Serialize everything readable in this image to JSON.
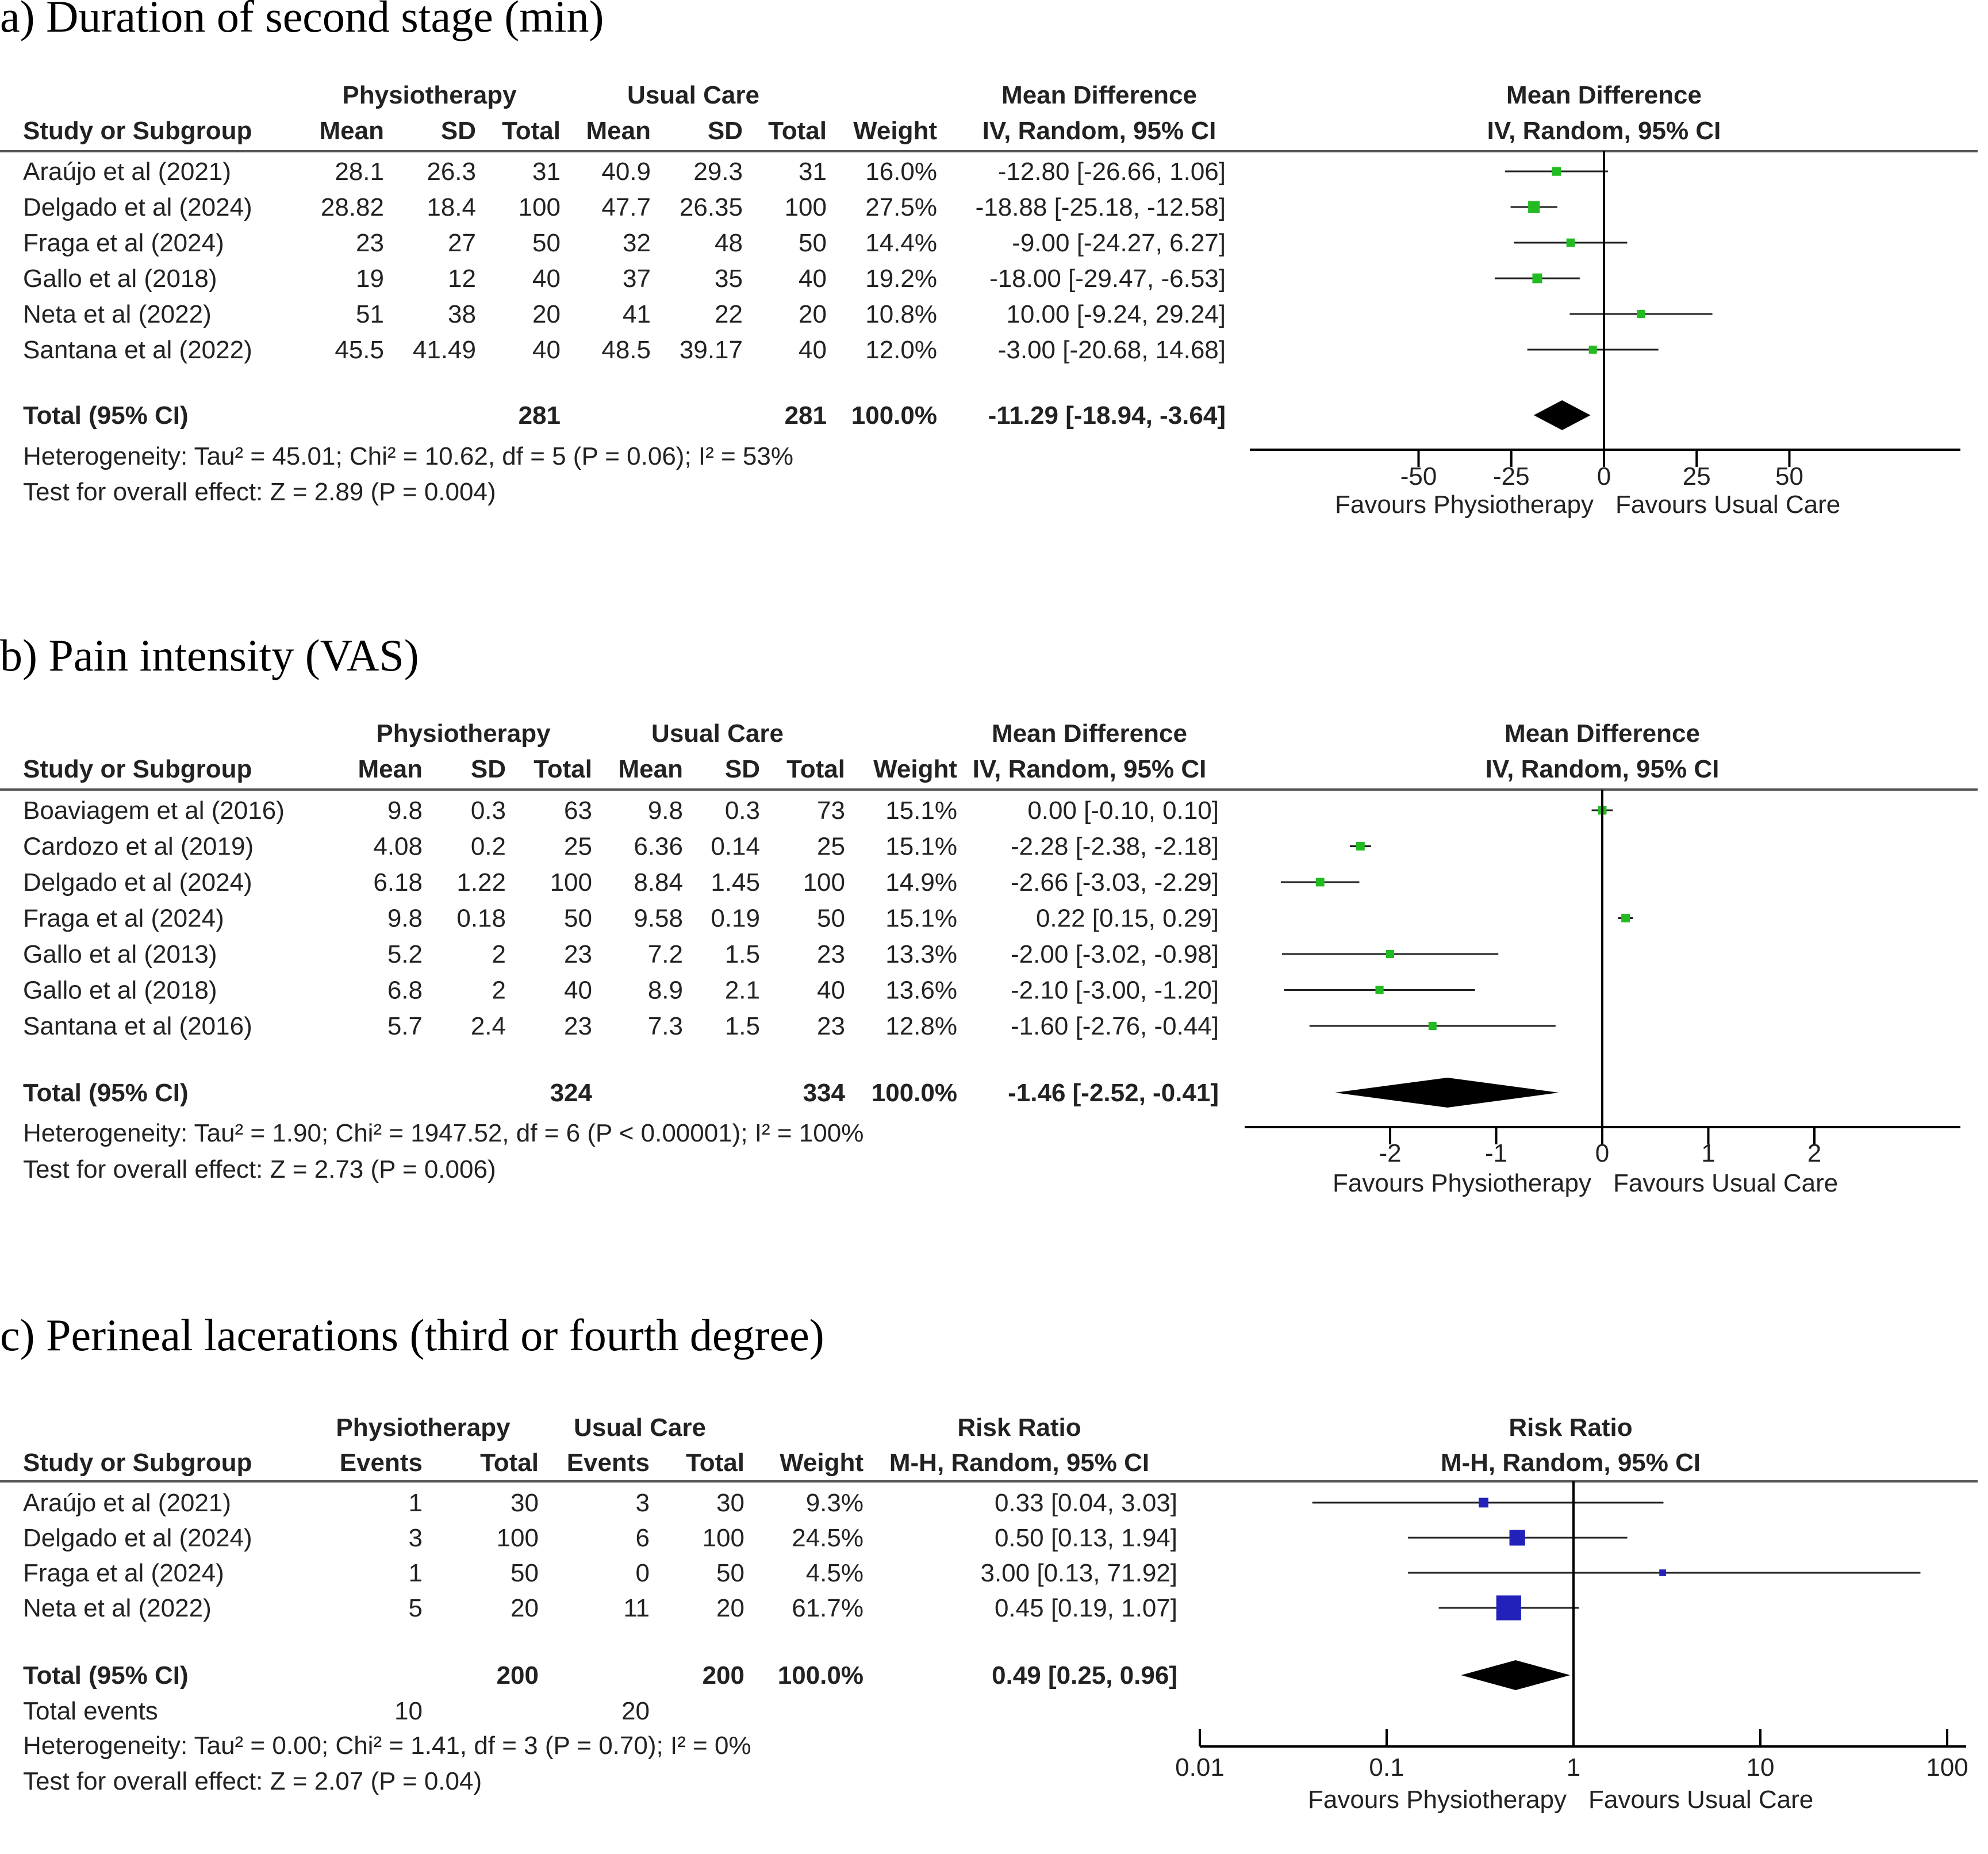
{
  "chart_data": [
    {
      "type": "forest",
      "title": "a) Duration of second stage (min)",
      "effect_header": [
        "Mean Difference",
        "IV, Random, 95% CI"
      ],
      "plot_header": [
        "Mean Difference",
        "IV, Random, 95% CI"
      ],
      "group_headers": [
        "Physiotherapy",
        "Usual Care"
      ],
      "columns": [
        "Study or Subgroup",
        "Mean",
        "SD",
        "Total",
        "Mean",
        "SD",
        "Total",
        "Weight",
        "IV, Random, 95% CI"
      ],
      "studies": [
        {
          "name": "Araújo et al (2021)",
          "cells": [
            "28.1",
            "26.3",
            "31",
            "40.9",
            "29.3",
            "31",
            "16.0%",
            "-12.80 [-26.66, 1.06]"
          ],
          "est": -12.8,
          "lo": -26.66,
          "hi": 1.06
        },
        {
          "name": "Delgado et al (2024)",
          "cells": [
            "28.82",
            "18.4",
            "100",
            "47.7",
            "26.35",
            "100",
            "27.5%",
            "-18.88 [-25.18, -12.58]"
          ],
          "est": -18.88,
          "lo": -25.18,
          "hi": -12.58
        },
        {
          "name": "Fraga et al (2024)",
          "cells": [
            "23",
            "27",
            "50",
            "32",
            "48",
            "50",
            "14.4%",
            "-9.00 [-24.27, 6.27]"
          ],
          "est": -9.0,
          "lo": -24.27,
          "hi": 6.27
        },
        {
          "name": "Gallo et al (2018)",
          "cells": [
            "19",
            "12",
            "40",
            "37",
            "35",
            "40",
            "19.2%",
            "-18.00 [-29.47, -6.53]"
          ],
          "est": -18.0,
          "lo": -29.47,
          "hi": -6.53
        },
        {
          "name": "Neta et al (2022)",
          "cells": [
            "51",
            "38",
            "20",
            "41",
            "22",
            "20",
            "10.8%",
            "10.00 [-9.24, 29.24]"
          ],
          "est": 10.0,
          "lo": -9.24,
          "hi": 29.24
        },
        {
          "name": "Santana et al (2022)",
          "cells": [
            "45.5",
            "41.49",
            "40",
            "48.5",
            "39.17",
            "40",
            "12.0%",
            "-3.00 [-20.68, 14.68]"
          ],
          "est": -3.0,
          "lo": -20.68,
          "hi": 14.68
        }
      ],
      "total": {
        "label": "Total (95% CI)",
        "cells": [
          "",
          "",
          "281",
          "",
          "",
          "281",
          "100.0%",
          "-11.29 [-18.94, -3.64]"
        ],
        "est": -11.29,
        "lo": -18.94,
        "hi": -3.64
      },
      "footer": [
        "Heterogeneity: Tau² = 45.01; Chi² = 10.62, df = 5 (P = 0.06); I² = 53%",
        "Test for overall effect: Z = 2.89 (P = 0.004)"
      ],
      "scale": "linear",
      "xlim": [
        -50,
        50
      ],
      "ticks": [
        -50,
        -25,
        0,
        25,
        50
      ],
      "tick_labels": [
        "-50",
        "-25",
        "0",
        "25",
        "50"
      ],
      "favours": [
        "Favours Physiotherapy",
        "Favours Usual Care"
      ],
      "marker_color": "#22bb22"
    },
    {
      "type": "forest",
      "title": "b) Pain intensity (VAS)",
      "effect_header": [
        "Mean Difference",
        "IV, Random, 95% CI"
      ],
      "plot_header": [
        "Mean Difference",
        "IV, Random, 95% CI"
      ],
      "group_headers": [
        "Physiotherapy",
        "Usual Care"
      ],
      "columns": [
        "Study or Subgroup",
        "Mean",
        "SD",
        "Total",
        "Mean",
        "SD",
        "Total",
        "Weight",
        "IV, Random, 95% CI"
      ],
      "studies": [
        {
          "name": "Boaviagem et al (2016)",
          "cells": [
            "9.8",
            "0.3",
            "63",
            "9.8",
            "0.3",
            "73",
            "15.1%",
            "0.00 [-0.10, 0.10]"
          ],
          "est": 0.0,
          "lo": -0.1,
          "hi": 0.1
        },
        {
          "name": "Cardozo et al (2019)",
          "cells": [
            "4.08",
            "0.2",
            "25",
            "6.36",
            "0.14",
            "25",
            "15.1%",
            "-2.28 [-2.38, -2.18]"
          ],
          "est": -2.28,
          "lo": -2.38,
          "hi": -2.18
        },
        {
          "name": "Delgado et al (2024)",
          "cells": [
            "6.18",
            "1.22",
            "100",
            "8.84",
            "1.45",
            "100",
            "14.9%",
            "-2.66 [-3.03, -2.29]"
          ],
          "est": -2.66,
          "lo": -3.03,
          "hi": -2.29
        },
        {
          "name": "Fraga et al (2024)",
          "cells": [
            "9.8",
            "0.18",
            "50",
            "9.58",
            "0.19",
            "50",
            "15.1%",
            "0.22 [0.15, 0.29]"
          ],
          "est": 0.22,
          "lo": 0.15,
          "hi": 0.29
        },
        {
          "name": "Gallo et al (2013)",
          "cells": [
            "5.2",
            "2",
            "23",
            "7.2",
            "1.5",
            "23",
            "13.3%",
            "-2.00 [-3.02, -0.98]"
          ],
          "est": -2.0,
          "lo": -3.02,
          "hi": -0.98
        },
        {
          "name": "Gallo et al (2018)",
          "cells": [
            "6.8",
            "2",
            "40",
            "8.9",
            "2.1",
            "40",
            "13.6%",
            "-2.10 [-3.00, -1.20]"
          ],
          "est": -2.1,
          "lo": -3.0,
          "hi": -1.2
        },
        {
          "name": "Santana et al (2016)",
          "cells": [
            "5.7",
            "2.4",
            "23",
            "7.3",
            "1.5",
            "23",
            "12.8%",
            "-1.60 [-2.76, -0.44]"
          ],
          "est": -1.6,
          "lo": -2.76,
          "hi": -0.44
        }
      ],
      "total": {
        "label": "Total (95% CI)",
        "cells": [
          "",
          "",
          "324",
          "",
          "",
          "334",
          "100.0%",
          "-1.46 [-2.52, -0.41]"
        ],
        "est": -1.46,
        "lo": -2.52,
        "hi": -0.41
      },
      "footer": [
        "Heterogeneity: Tau² = 1.90; Chi² = 1947.52, df = 6 (P < 0.00001); I² = 100%",
        "Test for overall effect: Z = 2.73 (P = 0.006)"
      ],
      "scale": "linear",
      "xlim": [
        -3.4,
        3.4
      ],
      "ticks": [
        -2,
        -1,
        0,
        1,
        2
      ],
      "tick_labels": [
        "-2",
        "-1",
        "0",
        "1",
        "2"
      ],
      "favours": [
        "Favours Physiotherapy",
        "Favours Usual Care"
      ],
      "marker_color": "#22bb22"
    },
    {
      "type": "forest",
      "title": "c) Perineal lacerations (third or fourth degree)",
      "effect_header": [
        "Risk Ratio",
        "M-H, Random, 95% CI"
      ],
      "plot_header": [
        "Risk Ratio",
        "M-H, Random, 95% CI"
      ],
      "group_headers": [
        "Physiotherapy",
        "Usual Care"
      ],
      "columns": [
        "Study or Subgroup",
        "Events",
        "Total",
        "Events",
        "Total",
        "Weight",
        "M-H, Random, 95% CI"
      ],
      "studies": [
        {
          "name": "Araújo et al (2021)",
          "cells": [
            "1",
            "30",
            "3",
            "30",
            "9.3%",
            "0.33 [0.04, 3.03]"
          ],
          "est": 0.33,
          "lo": 0.04,
          "hi": 3.03
        },
        {
          "name": "Delgado et al (2024)",
          "cells": [
            "3",
            "100",
            "6",
            "100",
            "24.5%",
            "0.50 [0.13, 1.94]"
          ],
          "est": 0.5,
          "lo": 0.13,
          "hi": 1.94
        },
        {
          "name": "Fraga et al (2024)",
          "cells": [
            "1",
            "50",
            "0",
            "50",
            "4.5%",
            "3.00 [0.13, 71.92]"
          ],
          "est": 3.0,
          "lo": 0.13,
          "hi": 71.92
        },
        {
          "name": "Neta et al (2022)",
          "cells": [
            "5",
            "20",
            "11",
            "20",
            "61.7%",
            "0.45 [0.19, 1.07]"
          ],
          "est": 0.45,
          "lo": 0.19,
          "hi": 1.07
        }
      ],
      "total": {
        "label": "Total (95% CI)",
        "cells": [
          "",
          "200",
          "",
          "200",
          "100.0%",
          "0.49 [0.25, 0.96]"
        ],
        "est": 0.49,
        "lo": 0.25,
        "hi": 0.96
      },
      "total_events": {
        "label": "Total events",
        "values": [
          "10",
          "20"
        ]
      },
      "footer": [
        "Heterogeneity: Tau² = 0.00; Chi² = 1.41, df = 3 (P = 0.70); I² = 0%",
        "Test for overall effect: Z = 2.07 (P = 0.04)"
      ],
      "scale": "log",
      "xlim": [
        0.01,
        100
      ],
      "ticks": [
        0.01,
        0.1,
        1,
        10,
        100
      ],
      "tick_labels": [
        "0.01",
        "0.1",
        "1",
        "10",
        "100"
      ],
      "favours": [
        "Favours Physiotherapy",
        "Favours Usual Care"
      ],
      "marker_color": "#2222bb"
    }
  ]
}
